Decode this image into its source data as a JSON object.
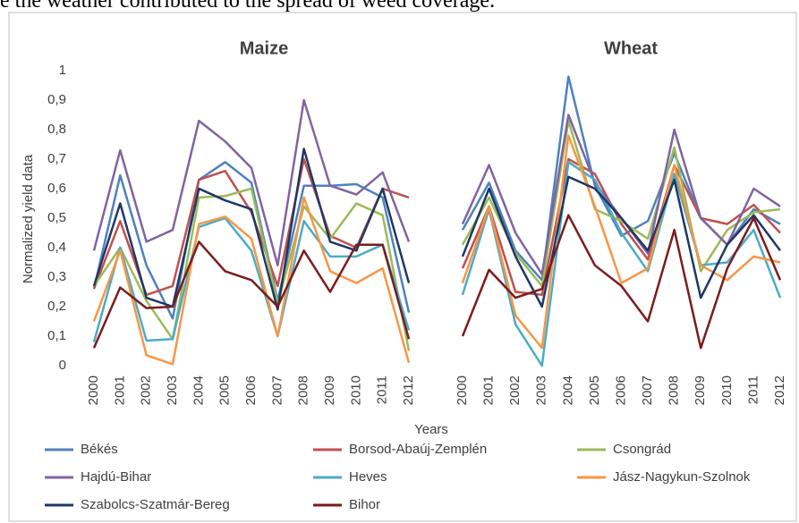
{
  "context_text": "e the weather contributed to the spread of weed coverage.",
  "chart_data": {
    "type": "line",
    "y_label": "Normalized yield data",
    "x_label": "Years",
    "categories": [
      "2000",
      "2001",
      "2002",
      "2003",
      "2004",
      "2005",
      "2006",
      "2007",
      "2008",
      "2009",
      "2010",
      "2011",
      "2012"
    ],
    "ylim": [
      0,
      1
    ],
    "yticks": [
      0,
      {
        "value": 0.1,
        "label": "0,1"
      },
      {
        "value": 0.2,
        "label": "0,2"
      },
      {
        "value": 0.3,
        "label": "0,3"
      },
      {
        "value": 0.4,
        "label": "0,4"
      },
      {
        "value": 0.5,
        "label": "0,5"
      },
      {
        "value": 0.6,
        "label": "0,6"
      },
      {
        "value": 0.7,
        "label": "0,7"
      },
      {
        "value": 0.8,
        "label": "0,8"
      },
      {
        "value": 0.9,
        "label": "0,9"
      },
      1
    ],
    "series": [
      {
        "name": "Békés",
        "color": "#4f81bd"
      },
      {
        "name": "Borsod-Abaúj-Zemplén",
        "color": "#c0504d"
      },
      {
        "name": "Csongrád",
        "color": "#9bbb59"
      },
      {
        "name": "Hajdú-Bihar",
        "color": "#8064a2"
      },
      {
        "name": "Heves",
        "color": "#4bacc6"
      },
      {
        "name": "Jász-Nagykun-Szolnok",
        "color": "#f79646"
      },
      {
        "name": "Szabolcs-Szatmár-Bereg",
        "color": "#1f3864"
      },
      {
        "name": "Bihor",
        "color": "#7b1c1c"
      }
    ],
    "panels": [
      {
        "title": "Maize",
        "series": [
          {
            "values": [
              0.26,
              0.645,
              0.34,
              0.16,
              0.63,
              0.69,
              0.62,
              0.22,
              0.61,
              0.61,
              0.615,
              0.57,
              0.18
            ]
          },
          {
            "values": [
              0.26,
              0.49,
              0.24,
              0.27,
              0.63,
              0.66,
              0.52,
              0.27,
              0.7,
              0.44,
              0.4,
              0.6,
              0.57
            ]
          },
          {
            "values": [
              0.27,
              0.4,
              0.22,
              0.09,
              0.57,
              0.575,
              0.6,
              0.21,
              0.54,
              0.43,
              0.55,
              0.51,
              0.05
            ]
          },
          {
            "values": [
              0.39,
              0.73,
              0.42,
              0.46,
              0.83,
              0.76,
              0.67,
              0.34,
              0.9,
              0.61,
              0.58,
              0.655,
              0.42
            ]
          },
          {
            "values": [
              0.08,
              0.4,
              0.085,
              0.09,
              0.47,
              0.5,
              0.39,
              0.1,
              0.49,
              0.37,
              0.37,
              0.41,
              0.12
            ]
          },
          {
            "values": [
              0.15,
              0.39,
              0.035,
              0.005,
              0.48,
              0.505,
              0.43,
              0.1,
              0.57,
              0.32,
              0.28,
              0.33,
              0.01
            ]
          },
          {
            "values": [
              0.27,
              0.55,
              0.23,
              0.2,
              0.6,
              0.56,
              0.53,
              0.19,
              0.735,
              0.42,
              0.39,
              0.6,
              0.28
            ]
          },
          {
            "values": [
              0.06,
              0.265,
              0.195,
              0.2,
              0.42,
              0.32,
              0.29,
              0.2,
              0.39,
              0.25,
              0.41,
              0.41,
              0.09
            ]
          }
        ]
      },
      {
        "title": "Wheat",
        "series": [
          {
            "values": [
              0.46,
              0.62,
              0.39,
              0.29,
              0.98,
              0.61,
              0.44,
              0.49,
              0.72,
              0.5,
              0.41,
              0.53,
              0.48
            ]
          },
          {
            "values": [
              0.33,
              0.54,
              0.25,
              0.24,
              0.7,
              0.65,
              0.48,
              0.36,
              0.68,
              0.5,
              0.48,
              0.545,
              0.45
            ]
          },
          {
            "values": [
              0.41,
              0.57,
              0.38,
              0.27,
              0.83,
              0.53,
              0.49,
              0.43,
              0.74,
              0.32,
              0.46,
              0.52,
              0.53
            ]
          },
          {
            "values": [
              0.48,
              0.68,
              0.45,
              0.31,
              0.85,
              0.62,
              0.5,
              0.38,
              0.8,
              0.5,
              0.41,
              0.6,
              0.54
            ]
          },
          {
            "values": [
              0.24,
              0.53,
              0.14,
              0.0,
              0.69,
              0.63,
              0.45,
              0.32,
              0.65,
              0.34,
              0.35,
              0.46,
              0.23
            ]
          },
          {
            "values": [
              0.28,
              0.54,
              0.17,
              0.06,
              0.78,
              0.54,
              0.28,
              0.33,
              0.68,
              0.34,
              0.29,
              0.37,
              0.35
            ]
          },
          {
            "values": [
              0.37,
              0.6,
              0.37,
              0.2,
              0.64,
              0.6,
              0.5,
              0.39,
              0.63,
              0.23,
              0.41,
              0.51,
              0.39
            ]
          },
          {
            "values": [
              0.1,
              0.325,
              0.23,
              0.26,
              0.51,
              0.34,
              0.27,
              0.15,
              0.46,
              0.06,
              0.33,
              0.5,
              0.29
            ]
          }
        ]
      }
    ]
  }
}
